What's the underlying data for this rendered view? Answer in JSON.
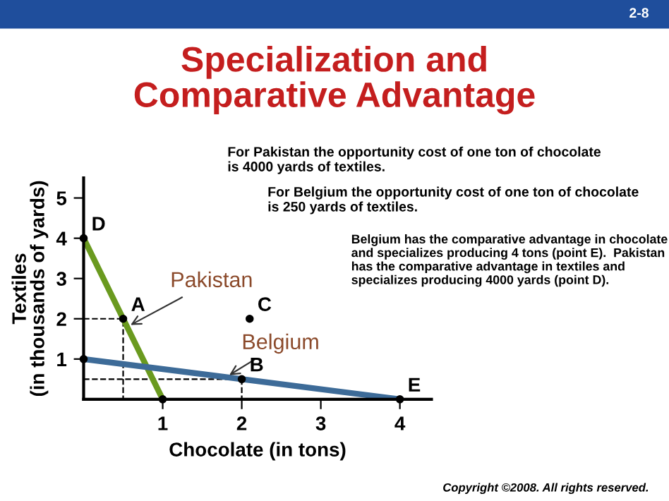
{
  "chart_data": {
    "type": "line",
    "title": "Specialization and\nComparative Advantage",
    "xlabel": "Chocolate (in tons)",
    "ylabel": "Textiles\n(in thousands of yards)",
    "xlim": [
      0,
      4.4
    ],
    "ylim": [
      0,
      5.5
    ],
    "xticks": [
      1,
      2,
      3,
      4
    ],
    "yticks": [
      1,
      2,
      3,
      4,
      5
    ],
    "grid": false,
    "legend": false,
    "series": [
      {
        "name": "Pakistan",
        "color": "#6a9a1f",
        "x": [
          0,
          1
        ],
        "values": [
          4,
          0
        ]
      },
      {
        "name": "Belgium",
        "color": "#3d6b98",
        "x": [
          0,
          4
        ],
        "values": [
          1,
          0
        ]
      },
      {
        "type": "line",
        "color": "#000000",
        "line_style": "dashed",
        "x": [
          0,
          0.5,
          0.5
        ],
        "values": [
          2,
          2,
          0
        ]
      },
      {
        "type": "line",
        "color": "#000000",
        "line_style": "dashed",
        "x": [
          0,
          2,
          2
        ],
        "values": [
          0.5,
          0.5,
          0
        ]
      },
      {
        "type": "scatter",
        "color": "#000000",
        "x": [
          0,
          0.5,
          2.1,
          2,
          4,
          0,
          1
        ],
        "values": [
          4,
          2,
          2,
          0.5,
          0,
          1,
          0
        ]
      }
    ],
    "annotations": [
      "2-8",
      "For Pakistan the opportunity cost of one ton of chocolate\nis 4000 yards of textiles.",
      "For Belgium the opportunity cost of one ton of chocolate\nis 250 yards of textiles.",
      "Belgium has the comparative advantage in chocolate\nand specializes producing 4 tons (point E).  Pakistan\nhas the comparative advantage in textiles and\nspecializes producing 4000 yards (point D).",
      "Copyright ©2008. All rights reserved.",
      {
        "text": "D",
        "x": 0,
        "y": 4
      },
      {
        "text": "A",
        "x": 0.5,
        "y": 2
      },
      {
        "text": "C",
        "x": 2.1,
        "y": 2
      },
      {
        "text": "B",
        "x": 2,
        "y": 0.5
      },
      {
        "text": "E",
        "x": 4,
        "y": 0
      }
    ]
  }
}
